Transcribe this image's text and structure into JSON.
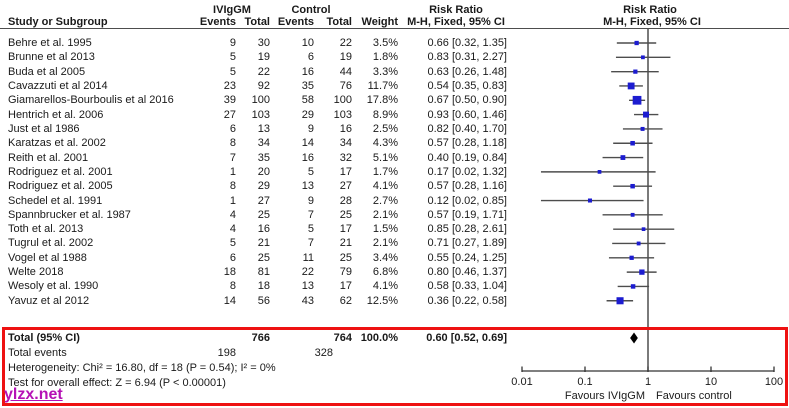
{
  "watermark": "ylzx.net",
  "colors": {
    "square": "#1c1cd0",
    "ci_line": "#4d4d4d",
    "axis": "#333333",
    "diamond": "#000000",
    "annotation_red": "#ee1111",
    "watermark_purple": "#b511b5"
  },
  "chart_data": {
    "type": "forest",
    "scale": "log10",
    "effect_measure": "Risk Ratio",
    "method": "M-H, Fixed, 95% CI",
    "headers": {
      "group1": "IVIgGM",
      "group2": "Control",
      "risk_ratio_text_col": "Risk Ratio",
      "risk_ratio_plot_col": "Risk Ratio",
      "study": "Study or Subgroup",
      "events1": "Events",
      "total1": "Total",
      "events2": "Events",
      "total2": "Total",
      "weight": "Weight",
      "mh_text_col": "M-H, Fixed, 95% CI",
      "mh_plot_col": "M-H, Fixed, 95% CI"
    },
    "studies": [
      {
        "name": "Behre et al. 1995",
        "e1": "9",
        "t1": "30",
        "e2": "10",
        "t2": "22",
        "weight": "3.5%",
        "rr_text": "0.66 [0.32, 1.35]",
        "rr": 0.66,
        "lo": 0.32,
        "hi": 1.35,
        "w": 3.5
      },
      {
        "name": "Brunne et al 2013",
        "e1": "5",
        "t1": "19",
        "e2": "6",
        "t2": "19",
        "weight": "1.8%",
        "rr_text": "0.83 [0.31, 2.27]",
        "rr": 0.83,
        "lo": 0.31,
        "hi": 2.27,
        "w": 1.8
      },
      {
        "name": "Buda et al 2005",
        "e1": "5",
        "t1": "22",
        "e2": "16",
        "t2": "44",
        "weight": "3.3%",
        "rr_text": "0.63 [0.26, 1.48]",
        "rr": 0.63,
        "lo": 0.26,
        "hi": 1.48,
        "w": 3.3
      },
      {
        "name": "Cavazzuti et al 2014",
        "e1": "23",
        "t1": "92",
        "e2": "35",
        "t2": "76",
        "weight": "11.7%",
        "rr_text": "0.54 [0.35, 0.83]",
        "rr": 0.54,
        "lo": 0.35,
        "hi": 0.83,
        "w": 11.7
      },
      {
        "name": "Giamarellos-Bourboulis et al 2016",
        "e1": "39",
        "t1": "100",
        "e2": "58",
        "t2": "100",
        "weight": "17.8%",
        "rr_text": "0.67 [0.50, 0.90]",
        "rr": 0.67,
        "lo": 0.5,
        "hi": 0.9,
        "w": 17.8
      },
      {
        "name": "Hentrich et al. 2006",
        "e1": "27",
        "t1": "103",
        "e2": "29",
        "t2": "103",
        "weight": "8.9%",
        "rr_text": "0.93 [0.60, 1.46]",
        "rr": 0.93,
        "lo": 0.6,
        "hi": 1.46,
        "w": 8.9
      },
      {
        "name": "Just et al 1986",
        "e1": "6",
        "t1": "13",
        "e2": "9",
        "t2": "16",
        "weight": "2.5%",
        "rr_text": "0.82 [0.40, 1.70]",
        "rr": 0.82,
        "lo": 0.4,
        "hi": 1.7,
        "w": 2.5
      },
      {
        "name": "Karatzas et al. 2002",
        "e1": "8",
        "t1": "34",
        "e2": "14",
        "t2": "34",
        "weight": "4.3%",
        "rr_text": "0.57 [0.28, 1.18]",
        "rr": 0.57,
        "lo": 0.28,
        "hi": 1.18,
        "w": 4.3
      },
      {
        "name": "Reith et al. 2001",
        "e1": "7",
        "t1": "35",
        "e2": "16",
        "t2": "32",
        "weight": "5.1%",
        "rr_text": "0.40 [0.19, 0.84]",
        "rr": 0.4,
        "lo": 0.19,
        "hi": 0.84,
        "w": 5.1
      },
      {
        "name": "Rodriguez et al. 2001",
        "e1": "1",
        "t1": "20",
        "e2": "5",
        "t2": "17",
        "weight": "1.7%",
        "rr_text": "0.17 [0.02, 1.32]",
        "rr": 0.17,
        "lo": 0.02,
        "hi": 1.32,
        "w": 1.7
      },
      {
        "name": "Rodriguez et al. 2005",
        "e1": "8",
        "t1": "29",
        "e2": "13",
        "t2": "27",
        "weight": "4.1%",
        "rr_text": "0.57 [0.28, 1.16]",
        "rr": 0.57,
        "lo": 0.28,
        "hi": 1.16,
        "w": 4.1
      },
      {
        "name": "Schedel et al. 1991",
        "e1": "1",
        "t1": "27",
        "e2": "9",
        "t2": "28",
        "weight": "2.7%",
        "rr_text": "0.12 [0.02, 0.85]",
        "rr": 0.12,
        "lo": 0.02,
        "hi": 0.85,
        "w": 2.7
      },
      {
        "name": "Spannbrucker et al. 1987",
        "e1": "4",
        "t1": "25",
        "e2": "7",
        "t2": "25",
        "weight": "2.1%",
        "rr_text": "0.57 [0.19, 1.71]",
        "rr": 0.57,
        "lo": 0.19,
        "hi": 1.71,
        "w": 2.1
      },
      {
        "name": "Toth et al. 2013",
        "e1": "4",
        "t1": "16",
        "e2": "5",
        "t2": "17",
        "weight": "1.5%",
        "rr_text": "0.85 [0.28, 2.61]",
        "rr": 0.85,
        "lo": 0.28,
        "hi": 2.61,
        "w": 1.5
      },
      {
        "name": "Tugrul et al. 2002",
        "e1": "5",
        "t1": "21",
        "e2": "7",
        "t2": "21",
        "weight": "2.1%",
        "rr_text": "0.71 [0.27, 1.89]",
        "rr": 0.71,
        "lo": 0.27,
        "hi": 1.89,
        "w": 2.1
      },
      {
        "name": "Vogel et al 1988",
        "e1": "6",
        "t1": "25",
        "e2": "11",
        "t2": "25",
        "weight": "3.4%",
        "rr_text": "0.55 [0.24, 1.25]",
        "rr": 0.55,
        "lo": 0.24,
        "hi": 1.25,
        "w": 3.4
      },
      {
        "name": "Welte 2018",
        "e1": "18",
        "t1": "81",
        "e2": "22",
        "t2": "79",
        "weight": "6.8%",
        "rr_text": "0.80 [0.46, 1.37]",
        "rr": 0.8,
        "lo": 0.46,
        "hi": 1.37,
        "w": 6.8
      },
      {
        "name": "Wesoly et al. 1990",
        "e1": "8",
        "t1": "18",
        "e2": "13",
        "t2": "17",
        "weight": "4.1%",
        "rr_text": "0.58 [0.33, 1.04]",
        "rr": 0.58,
        "lo": 0.33,
        "hi": 1.04,
        "w": 4.1
      },
      {
        "name": "Yavuz et al 2012",
        "e1": "14",
        "t1": "56",
        "e2": "43",
        "t2": "62",
        "weight": "12.5%",
        "rr_text": "0.36 [0.22, 0.58]",
        "rr": 0.36,
        "lo": 0.22,
        "hi": 0.58,
        "w": 12.5
      }
    ],
    "total": {
      "label": "Total (95% CI)",
      "t1": "766",
      "t2": "764",
      "weight": "100.0%",
      "rr_text": "0.60 [0.52, 0.69]",
      "rr": 0.6,
      "lo": 0.52,
      "hi": 0.69
    },
    "total_events": {
      "label": "Total events",
      "e1": "198",
      "e2": "328"
    },
    "footer": {
      "heterogeneity": "Heterogeneity: Chi² = 16.80, df = 18 (P = 0.54); I² = 0%",
      "overall_effect": "Test for overall effect: Z = 6.94 (P < 0.00001)"
    },
    "axis": {
      "ticks": [
        0.01,
        0.1,
        1,
        10,
        100
      ],
      "tick_labels": [
        "0.01",
        "0.1",
        "1",
        "10",
        "100"
      ],
      "min": 0.01,
      "max": 100
    },
    "favours_left": "Favours IVIgGM",
    "favours_right": "Favours control"
  }
}
